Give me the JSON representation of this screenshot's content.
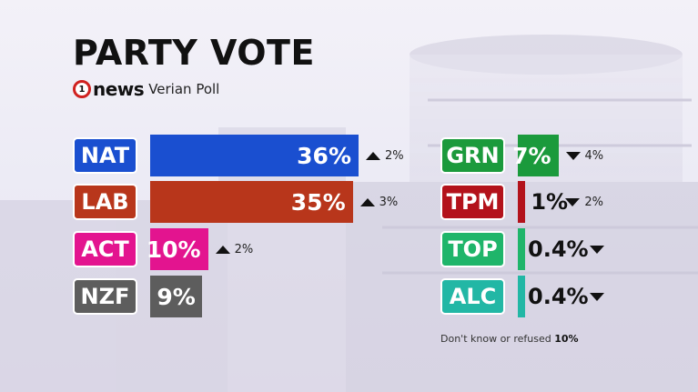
{
  "title": "PARTY VOTE",
  "brand": {
    "logo_text": "1",
    "news": "news",
    "poll": "Verian Poll"
  },
  "colors": {
    "NAT": "#1a4fd0",
    "LAB": "#b8361b",
    "ACT": "#e3148f",
    "NZF": "#5d5d5d",
    "GRN": "#1b9a3c",
    "TPM": "#b3121b",
    "TOP": "#1fb56a",
    "ALC": "#22b7a5"
  },
  "footnote": {
    "text": "Don't know or refused",
    "value": "10%"
  },
  "chart_data": {
    "type": "bar",
    "title": "PARTY VOTE",
    "unit": "%",
    "categories": [
      "NAT",
      "LAB",
      "ACT",
      "NZF",
      "GRN",
      "TPM",
      "TOP",
      "ALC"
    ],
    "values": [
      36,
      35,
      10,
      9,
      7,
      1,
      0.4,
      0.4
    ],
    "value_labels": [
      "36%",
      "35%",
      "10%",
      "9%",
      "7%",
      "1%",
      "0.4%",
      "0.4%"
    ],
    "change_direction": [
      "up",
      "up",
      "up",
      "none",
      "down",
      "down",
      "down",
      "down"
    ],
    "change_labels": [
      "2%",
      "3%",
      "2%",
      "",
      "4%",
      "2%",
      "",
      ""
    ]
  }
}
